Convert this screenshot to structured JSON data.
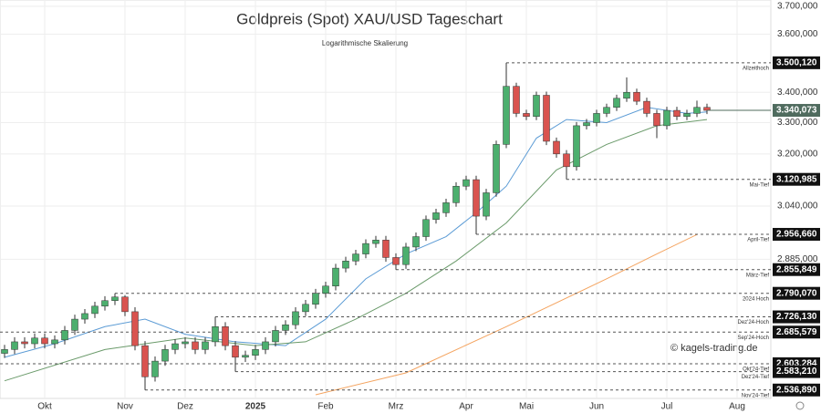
{
  "chart_data": {
    "type": "candlestick",
    "title": "Goldpreis (Spot) XAU/USD Tageschart",
    "subtitle": "Logarithmische Skalierung",
    "watermark": "© kagels-trading.de",
    "log_scale": true,
    "grid": true,
    "up_color": "#4caf6e",
    "down_color": "#d9534f",
    "categories": [
      null,
      null,
      null,
      null,
      "Okt",
      null,
      null,
      null,
      null,
      null,
      null,
      null,
      "Nov",
      null,
      null,
      null,
      null,
      null,
      "Dez",
      null,
      null,
      null,
      null,
      null,
      null,
      "2025",
      null,
      null,
      null,
      null,
      null,
      null,
      "Feb",
      null,
      null,
      null,
      null,
      null,
      null,
      "Mrz",
      null,
      null,
      null,
      null,
      null,
      null,
      "Apr",
      null,
      null,
      null,
      null,
      null,
      "Mai",
      null,
      null,
      null,
      null,
      null,
      null,
      "Jun",
      null,
      null,
      null,
      null,
      null,
      null,
      "Jul",
      null,
      null,
      null,
      null,
      null,
      null,
      "Aug"
    ],
    "open": [
      2630,
      2640,
      2660,
      2655,
      2670,
      2655,
      2665,
      2690,
      2720,
      2735,
      2755,
      2770,
      2780,
      2740,
      2650,
      2570,
      2610,
      2640,
      2655,
      2660,
      2640,
      2660,
      2700,
      2650,
      2620,
      2625,
      2640,
      2660,
      2690,
      2705,
      2740,
      2760,
      2790,
      2810,
      2860,
      2880,
      2900,
      2930,
      2940,
      2890,
      2870,
      2920,
      2950,
      3000,
      3020,
      3050,
      3100,
      3120,
      3010,
      3080,
      3230,
      3420,
      3330,
      3320,
      3390,
      3240,
      3200,
      3160,
      3290,
      3300,
      3330,
      3350,
      3380,
      3400,
      3370,
      3330,
      3290,
      3340,
      3320,
      3330,
      3350,
      null,
      null,
      null
    ],
    "high": [
      2652,
      2672,
      2672,
      2682,
      2682,
      2677,
      2702,
      2732,
      2747,
      2767,
      2782,
      2790.07,
      2785,
      2752,
      2662,
      2622,
      2652,
      2667,
      2672,
      2672,
      2672,
      2726.13,
      2712,
      2662,
      2637,
      2652,
      2672,
      2702,
      2717,
      2752,
      2772,
      2802,
      2822,
      2872,
      2892,
      2912,
      2942,
      2952,
      2952,
      2902,
      2932,
      2962,
      3012,
      3032,
      3062,
      3112,
      3132,
      3132,
      3092,
      3242,
      3500.12,
      3432,
      3342,
      3402,
      3402,
      3252,
      3212,
      3302,
      3312,
      3342,
      3362,
      3392,
      3450,
      3412,
      3382,
      3342,
      3352,
      3352,
      3342,
      3372,
      3362,
      null,
      null,
      null
    ],
    "low": [
      2618,
      2628,
      2643,
      2643,
      2643,
      2643,
      2653,
      2678,
      2708,
      2723,
      2743,
      2758,
      2728,
      2638,
      2536.89,
      2558,
      2598,
      2628,
      2643,
      2628,
      2628,
      2648,
      2638,
      2583.21,
      2608,
      2613,
      2628,
      2648,
      2678,
      2693,
      2728,
      2748,
      2778,
      2798,
      2848,
      2868,
      2888,
      2918,
      2878,
      2855.849,
      2858,
      2908,
      2938,
      2988,
      3008,
      3038,
      3088,
      2956.66,
      2998,
      3068,
      3218,
      3318,
      3308,
      3308,
      3228,
      3188,
      3120.985,
      3148,
      3278,
      3288,
      3318,
      3338,
      3368,
      3358,
      3318,
      3250,
      3278,
      3308,
      3308,
      3318,
      3328,
      null,
      null,
      null
    ],
    "close": [
      2640,
      2660,
      2655,
      2670,
      2655,
      2665,
      2690,
      2720,
      2735,
      2755,
      2770,
      2780,
      2740,
      2650,
      2570,
      2610,
      2640,
      2655,
      2660,
      2640,
      2660,
      2700,
      2650,
      2620,
      2625,
      2640,
      2660,
      2690,
      2705,
      2740,
      2760,
      2790,
      2810,
      2860,
      2880,
      2900,
      2930,
      2940,
      2890,
      2870,
      2920,
      2950,
      3000,
      3020,
      3050,
      3100,
      3120,
      3010,
      3080,
      3230,
      3420,
      3330,
      3320,
      3390,
      3240,
      3200,
      3160,
      3290,
      3300,
      3330,
      3350,
      3380,
      3400,
      3370,
      3330,
      3290,
      3340,
      3320,
      3330,
      3350,
      3340,
      null,
      null,
      null
    ],
    "lines": [
      {
        "color": "#5b9bd5",
        "x": [
          0,
          5,
          10,
          14,
          18,
          23,
          28,
          32,
          36,
          40,
          44,
          47,
          50,
          53,
          56,
          60,
          64,
          68,
          70
        ],
        "values": [
          2620,
          2655,
          2700,
          2720,
          2680,
          2660,
          2650,
          2720,
          2830,
          2900,
          2950,
          3020,
          3100,
          3250,
          3310,
          3300,
          3350,
          3330,
          3335
        ]
      },
      {
        "color": "#6a9a6a",
        "x": [
          0,
          10,
          18,
          25,
          30,
          35,
          40,
          45,
          50,
          55,
          60,
          65,
          70
        ],
        "values": [
          2560,
          2640,
          2670,
          2650,
          2660,
          2720,
          2790,
          2880,
          2990,
          3150,
          3230,
          3290,
          3310
        ]
      },
      {
        "color": "#f4a460",
        "x": [
          31,
          40,
          50,
          60,
          65,
          69
        ],
        "values": [
          2525,
          2580,
          2700,
          2830,
          2900,
          2956
        ]
      }
    ],
    "levels": [
      {
        "value": 3500.12,
        "label": "3.500,120",
        "note": "Allzeithoch"
      },
      {
        "value": 3120.985,
        "label": "3.120,985",
        "note": "Mai-Tief"
      },
      {
        "value": 2956.66,
        "label": "2.956,660",
        "note": "April-Tief"
      },
      {
        "value": 2855.849,
        "label": "2.855,849",
        "note": "März-Tief"
      },
      {
        "value": 2790.07,
        "label": "2.790,070",
        "note": "2024 Hoch"
      },
      {
        "value": 2726.13,
        "label": "2.726,130",
        "note": "Dez'24-Hoch"
      },
      {
        "value": 2685.579,
        "label": "2.685,579",
        "note": "Sep'24-Hoch"
      },
      {
        "value": 2603.284,
        "label": "2.603,284",
        "note": "Okt'24-Tief"
      },
      {
        "value": 2583.21,
        "label": "2.583,210",
        "note": "Dez'24-Tief"
      },
      {
        "value": 2536.89,
        "label": "2.536,890",
        "note": "Nov'24-Tief"
      }
    ],
    "current": {
      "value": 3340.073,
      "label": "3.340,073",
      "color": "#4f6b5e"
    },
    "ylim": [
      2516,
      3723
    ],
    "yticks": [
      {
        "value": 3700,
        "label": "3.700,000"
      },
      {
        "value": 3600,
        "label": "3.600,000"
      },
      {
        "value": 3400,
        "label": "3.400,000"
      },
      {
        "value": 3300,
        "label": "3.300,000"
      },
      {
        "value": 3200,
        "label": "3.200,000"
      },
      {
        "value": 3040,
        "label": "3.040,000"
      },
      {
        "value": 2885,
        "label": "2.885,000"
      }
    ]
  }
}
